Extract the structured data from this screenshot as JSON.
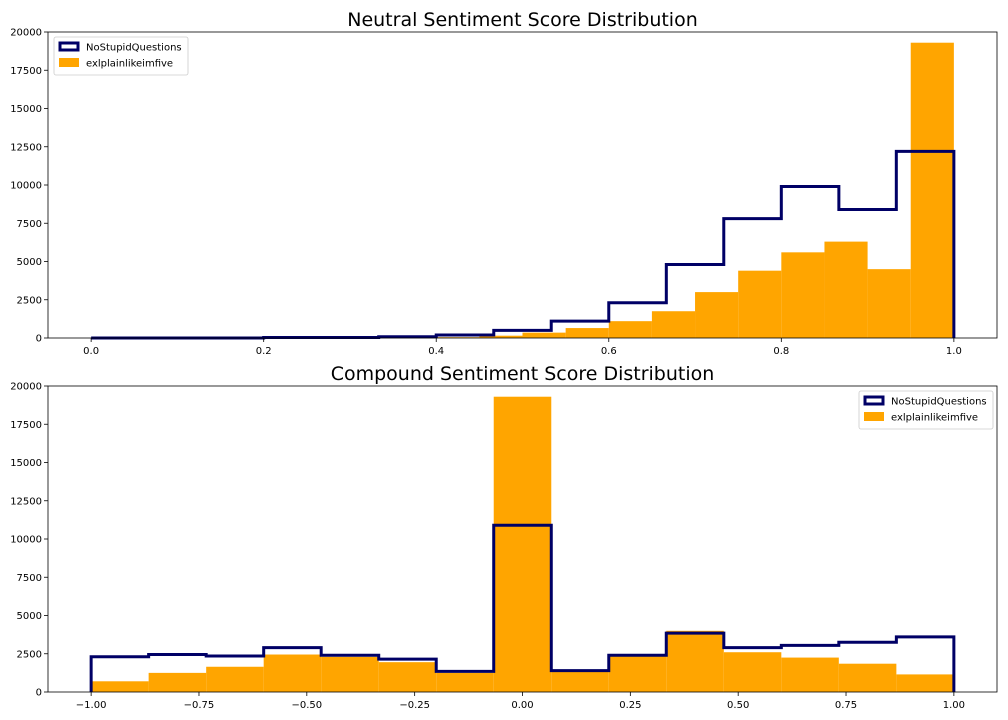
{
  "chart_data": [
    {
      "type": "histogram",
      "title": "Neutral Sentiment Score Distribution",
      "xlabel": "",
      "ylabel": "",
      "xlim": [
        -0.05,
        1.05
      ],
      "ylim": [
        0,
        20000
      ],
      "xticks": [
        0.0,
        0.2,
        0.4,
        0.6,
        0.8,
        1.0
      ],
      "xtick_labels": [
        "0.0",
        "0.2",
        "0.4",
        "0.6",
        "0.8",
        "1.0"
      ],
      "yticks": [
        0,
        2500,
        5000,
        7500,
        10000,
        12500,
        15000,
        17500,
        20000
      ],
      "ytick_labels": [
        "0",
        "2500",
        "5000",
        "7500",
        "10000",
        "12500",
        "15000",
        "17500",
        "20000"
      ],
      "legend_position": "top-left",
      "series": [
        {
          "name": "NoStupidQuestions",
          "style": "step",
          "color": "#000066",
          "bin_edges": [
            0.0,
            0.0667,
            0.1333,
            0.2,
            0.2667,
            0.3333,
            0.4,
            0.4667,
            0.5333,
            0.6,
            0.6667,
            0.7333,
            0.8,
            0.8667,
            0.9333,
            1.0
          ],
          "values": [
            0,
            0,
            0,
            30,
            30,
            80,
            200,
            500,
            1100,
            2300,
            4800,
            7800,
            9900,
            8400,
            12200
          ]
        },
        {
          "name": "exlplainlikeimfive",
          "style": "filled",
          "color": "#ffa500",
          "bin_edges": [
            0.35,
            0.4,
            0.45,
            0.5,
            0.55,
            0.6,
            0.65,
            0.7,
            0.75,
            0.8,
            0.85,
            0.9,
            0.95,
            1.0
          ],
          "values": [
            20,
            50,
            150,
            350,
            650,
            1100,
            1750,
            3000,
            4400,
            5600,
            6300,
            4500,
            19300
          ]
        }
      ]
    },
    {
      "type": "histogram",
      "title": "Compound Sentiment Score Distribution",
      "xlabel": "",
      "ylabel": "",
      "xlim": [
        -1.1,
        1.1
      ],
      "ylim": [
        0,
        20000
      ],
      "xticks": [
        -1.0,
        -0.75,
        -0.5,
        -0.25,
        0.0,
        0.25,
        0.5,
        0.75,
        1.0
      ],
      "xtick_labels": [
        "−1.00",
        "−0.75",
        "−0.50",
        "−0.25",
        "0.00",
        "0.25",
        "0.50",
        "0.75",
        "1.00"
      ],
      "yticks": [
        0,
        2500,
        5000,
        7500,
        10000,
        12500,
        15000,
        17500,
        20000
      ],
      "ytick_labels": [
        "0",
        "2500",
        "5000",
        "7500",
        "10000",
        "12500",
        "15000",
        "17500",
        "20000"
      ],
      "legend_position": "top-right",
      "series": [
        {
          "name": "NoStupidQuestions",
          "style": "step",
          "color": "#000066",
          "bin_edges": [
            -1.0,
            -0.8667,
            -0.7333,
            -0.6,
            -0.4667,
            -0.3333,
            -0.2,
            -0.0667,
            0.0667,
            0.2,
            0.3333,
            0.4667,
            0.6,
            0.7333,
            0.8667,
            1.0
          ],
          "values": [
            2300,
            2450,
            2350,
            2900,
            2400,
            2150,
            1350,
            10900,
            1400,
            2400,
            3850,
            2900,
            3050,
            3250,
            3600
          ]
        },
        {
          "name": "exlplainlikeimfive",
          "style": "filled",
          "color": "#ffa500",
          "bin_edges": [
            -1.0,
            -0.8667,
            -0.7333,
            -0.6,
            -0.4667,
            -0.3333,
            -0.2,
            -0.0667,
            0.0667,
            0.2,
            0.3333,
            0.4667,
            0.6,
            0.7333,
            0.8667,
            1.0
          ],
          "values": [
            700,
            1250,
            1650,
            2450,
            2300,
            1950,
            1250,
            19300,
            1400,
            2350,
            4000,
            2600,
            2250,
            1850,
            1150
          ]
        }
      ]
    }
  ]
}
